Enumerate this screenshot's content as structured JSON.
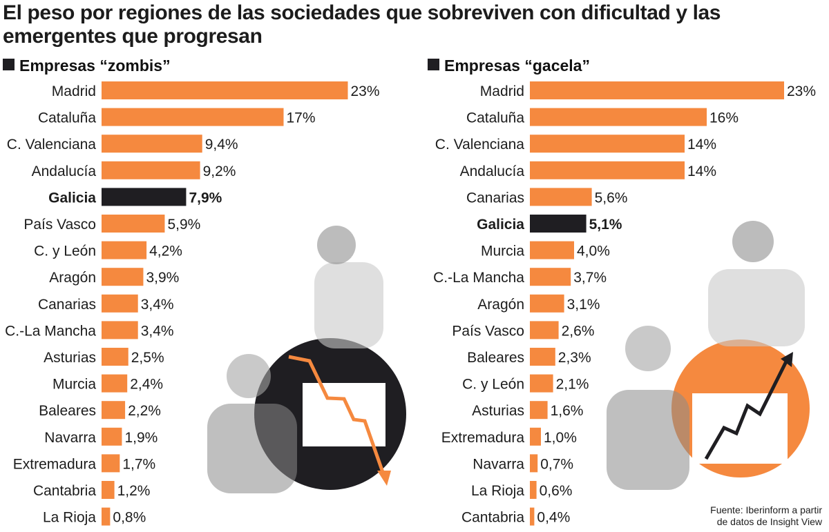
{
  "title": "El peso por regiones de las sociedades que sobreviven con dificultad y las emergentes que progresan",
  "source_lines": [
    "Fuente: Iberinform a partir",
    "de datos de Insight View"
  ],
  "colors": {
    "bar": "#f5893f",
    "highlight": "#1f1e22",
    "text": "#1c1c1c",
    "marker": "#1f1e22"
  },
  "chart_data": [
    {
      "type": "bar",
      "orientation": "horizontal",
      "title": "Empresas “zombis”",
      "unit": "%",
      "categories": [
        "Madrid",
        "Cataluña",
        "C. Valenciana",
        "Andalucía",
        "Galicia",
        "País Vasco",
        "C. y León",
        "Aragón",
        "Canarias",
        "C.-La Mancha",
        "Asturias",
        "Murcia",
        "Baleares",
        "Navarra",
        "Extremadura",
        "Cantabria",
        "La Rioja"
      ],
      "values": [
        23,
        17,
        9.4,
        9.2,
        7.9,
        5.9,
        4.2,
        3.9,
        3.4,
        3.4,
        2.5,
        2.4,
        2.2,
        1.9,
        1.7,
        1.2,
        0.8
      ],
      "labels": [
        "23%",
        "17%",
        "9,4%",
        "9,2%",
        "7,9%",
        "5,9%",
        "4,2%",
        "3,9%",
        "3,4%",
        "3,4%",
        "2,5%",
        "2,4%",
        "2,2%",
        "1,9%",
        "1,7%",
        "1,2%",
        "0,8%"
      ],
      "highlight": "Galicia"
    },
    {
      "type": "bar",
      "orientation": "horizontal",
      "title": "Empresas “gacela”",
      "unit": "%",
      "categories": [
        "Madrid",
        "Cataluña",
        "C. Valenciana",
        "Andalucía",
        "Canarias",
        "Galicia",
        "Murcia",
        "C.-La Mancha",
        "Aragón",
        "País Vasco",
        "Baleares",
        "C. y León",
        "Asturias",
        "Extremadura",
        "Navarra",
        "La Rioja",
        "Cantabria"
      ],
      "values": [
        23,
        16,
        14,
        14,
        5.6,
        5.1,
        4.0,
        3.7,
        3.1,
        2.6,
        2.3,
        2.1,
        1.6,
        1.0,
        0.7,
        0.6,
        0.4
      ],
      "labels": [
        "23%",
        "16%",
        "14%",
        "14%",
        "5,6%",
        "5,1%",
        "4,0%",
        "3,7%",
        "3,1%",
        "2,6%",
        "2,3%",
        "2,1%",
        "1,6%",
        "1,0%",
        "0,7%",
        "0,6%",
        "0,4%"
      ],
      "highlight": "Galicia"
    }
  ]
}
